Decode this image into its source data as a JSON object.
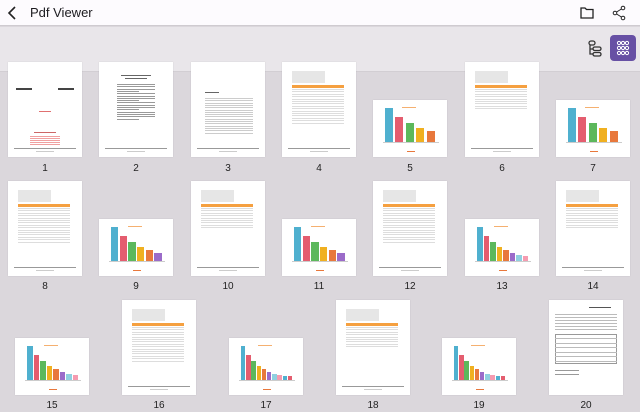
{
  "header": {
    "title": "Pdf Viewer",
    "back_icon": "chevron-left-icon",
    "actions": [
      {
        "icon": "folder-icon"
      },
      {
        "icon": "share-icon"
      }
    ]
  },
  "toolbar": {
    "buttons": [
      {
        "icon": "bookmark-outline-icon",
        "active": false
      },
      {
        "icon": "grid-view-icon",
        "active": true
      }
    ],
    "accent": "#6750a4"
  },
  "pages": [
    {
      "number": "1",
      "kind": "cover"
    },
    {
      "number": "2",
      "kind": "text"
    },
    {
      "number": "3",
      "kind": "toc"
    },
    {
      "number": "4",
      "kind": "table"
    },
    {
      "number": "5",
      "kind": "chart"
    },
    {
      "number": "6",
      "kind": "table"
    },
    {
      "number": "7",
      "kind": "chart"
    },
    {
      "number": "8",
      "kind": "table"
    },
    {
      "number": "9",
      "kind": "chart"
    },
    {
      "number": "10",
      "kind": "table"
    },
    {
      "number": "11",
      "kind": "chart"
    },
    {
      "number": "12",
      "kind": "table"
    },
    {
      "number": "13",
      "kind": "chart"
    },
    {
      "number": "14",
      "kind": "table"
    },
    {
      "number": "15",
      "kind": "chart"
    },
    {
      "number": "16",
      "kind": "table"
    },
    {
      "number": "17",
      "kind": "chart"
    },
    {
      "number": "18",
      "kind": "table"
    },
    {
      "number": "19",
      "kind": "chart"
    },
    {
      "number": "20",
      "kind": "form"
    }
  ],
  "chart_colors": [
    "#4fb0cf",
    "#e45d6f",
    "#5cb85c",
    "#f0b020",
    "#e8783c",
    "#9b6bc9",
    "#8fd0e0",
    "#f59bb0"
  ]
}
